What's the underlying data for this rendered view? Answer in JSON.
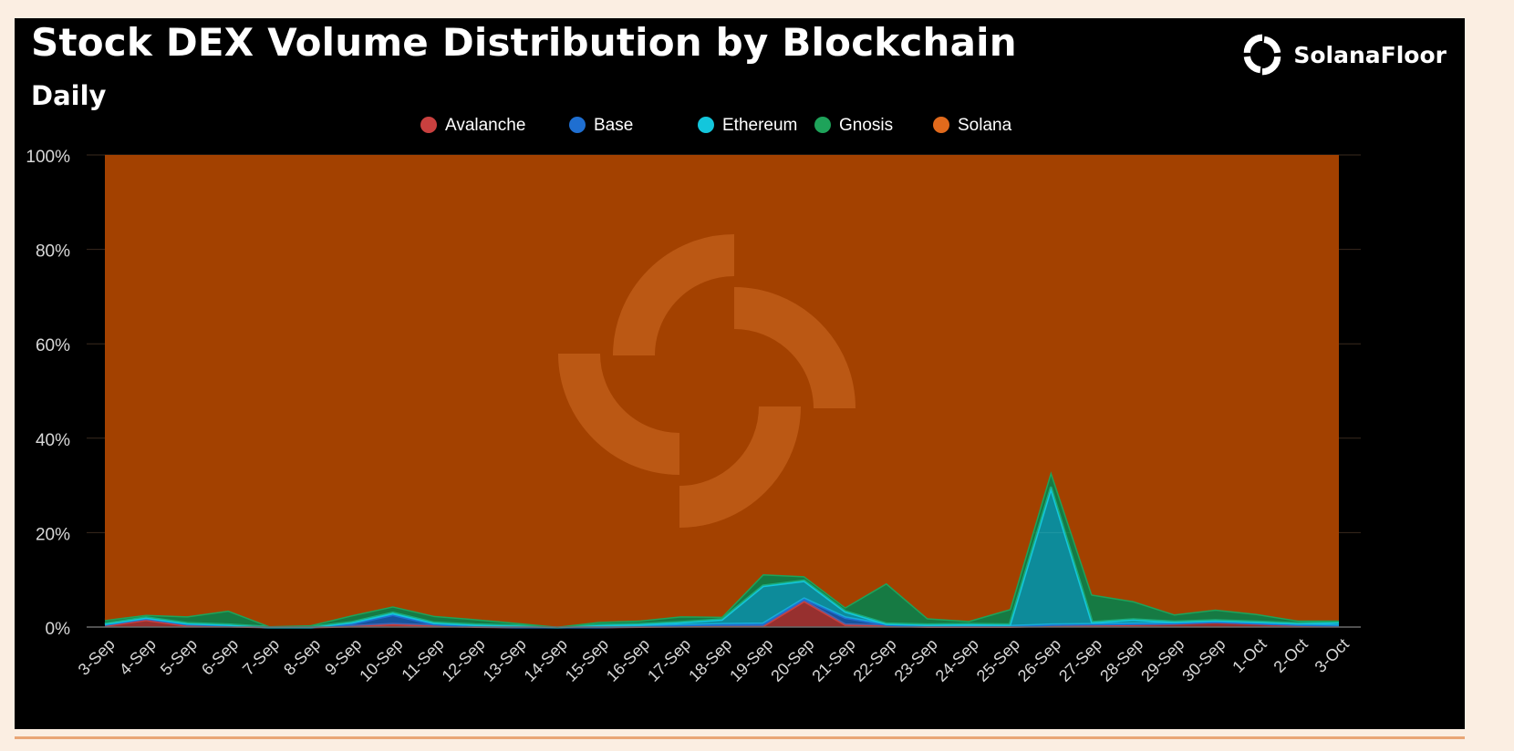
{
  "header": {
    "title": "Stock DEX Volume Distribution by Blockchain",
    "subtitle": "Daily",
    "brand": "SolanaFloor"
  },
  "icons": {
    "brand_logo": "solanafloor-logo-icon",
    "watermark": "solanafloor-watermark-icon"
  },
  "colors": {
    "background": "#000000",
    "page": "#fbeee2",
    "Avalanche": "#c9403f",
    "Base": "#1f6fd1",
    "Ethereum": "#13c6dc",
    "Gnosis": "#1ea35a",
    "Solana": "#e16a1c",
    "Solana_fill": "#a34100"
  },
  "chart_data": {
    "type": "area",
    "stacked": true,
    "normalized_percent": true,
    "title": "Stock DEX Volume Distribution by Blockchain",
    "subtitle": "Daily",
    "legend_position": "top-center",
    "ylim": [
      0,
      100
    ],
    "y_ticks": [
      "0%",
      "20%",
      "40%",
      "60%",
      "80%",
      "100%"
    ],
    "grid": true,
    "categories": [
      "3-Sep",
      "4-Sep",
      "5-Sep",
      "6-Sep",
      "7-Sep",
      "8-Sep",
      "9-Sep",
      "10-Sep",
      "11-Sep",
      "12-Sep",
      "13-Sep",
      "14-Sep",
      "15-Sep",
      "16-Sep",
      "17-Sep",
      "18-Sep",
      "19-Sep",
      "20-Sep",
      "21-Sep",
      "22-Sep",
      "23-Sep",
      "24-Sep",
      "25-Sep",
      "26-Sep",
      "27-Sep",
      "28-Sep",
      "29-Sep",
      "30-Sep",
      "1-Oct",
      "2-Oct",
      "3-Oct"
    ],
    "series": [
      {
        "name": "Avalanche",
        "values": [
          0.3,
          1.5,
          0.3,
          0.2,
          0,
          0,
          0.2,
          0.6,
          0.3,
          0.1,
          0,
          0,
          0,
          0.1,
          0.2,
          0.2,
          0.2,
          5.5,
          0.5,
          0.3,
          0.1,
          0.1,
          0.1,
          0.3,
          0.4,
          0.5,
          0.7,
          1.0,
          0.7,
          0.4,
          0.2
        ]
      },
      {
        "name": "Base",
        "values": [
          0.2,
          0.3,
          0.3,
          0.2,
          0,
          0,
          0.5,
          2.0,
          0.3,
          0.1,
          0,
          0,
          0,
          0.1,
          0.2,
          0.4,
          0.5,
          0.5,
          1.5,
          0.2,
          0.1,
          0.1,
          0.1,
          0.2,
          0.2,
          0.2,
          0.1,
          0.1,
          0.1,
          0.1,
          0.1
        ]
      },
      {
        "name": "Ethereum",
        "values": [
          0.2,
          0.2,
          0.2,
          0.1,
          0,
          0,
          0.3,
          0.4,
          0.3,
          0.3,
          0.3,
          0,
          0.4,
          0.4,
          0.6,
          1.0,
          8.0,
          3.8,
          1.3,
          0.2,
          0.3,
          0.4,
          0.3,
          29.0,
          0.4,
          0.9,
          0.3,
          0.3,
          0.3,
          0.3,
          0.7
        ]
      },
      {
        "name": "Gnosis",
        "values": [
          0.8,
          0.6,
          1.5,
          3.0,
          0.2,
          0.4,
          1.5,
          1.4,
          1.5,
          1.2,
          0.6,
          0.1,
          0.7,
          0.8,
          1.3,
          0.6,
          2.5,
          1.0,
          0.9,
          8.6,
          1.4,
          0.7,
          3.3,
          3.5,
          5.9,
          3.9,
          1.6,
          2.3,
          1.7,
          0.6,
          0.4
        ]
      },
      {
        "name": "Solana",
        "values": [
          98.5,
          97.4,
          97.7,
          96.5,
          99.8,
          99.6,
          97.5,
          95.6,
          97.6,
          98.3,
          99.1,
          99.9,
          98.9,
          98.6,
          97.7,
          97.8,
          88.8,
          89.2,
          95.8,
          90.7,
          98.1,
          98.7,
          96.2,
          67.0,
          93.1,
          94.5,
          97.3,
          96.3,
          97.2,
          98.6,
          98.6
        ]
      }
    ]
  }
}
